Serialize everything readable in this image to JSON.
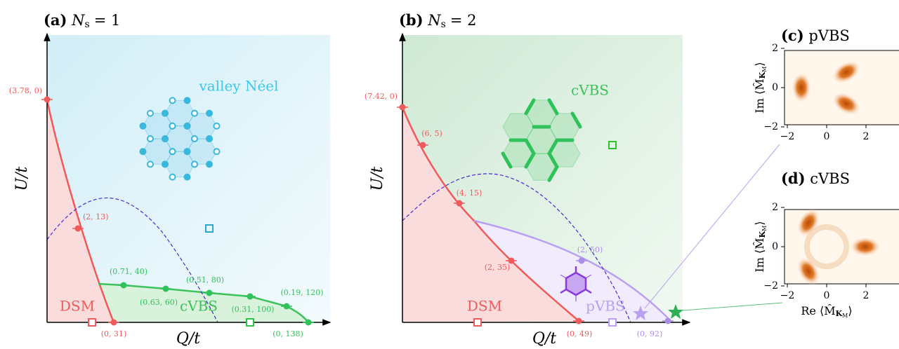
{
  "panel_a": {
    "tag": "(a)",
    "symbol": "N",
    "subscript": "s",
    "equals": "= 1",
    "y_label": "U/t",
    "x_label": "Q/t",
    "phases": [
      "valley Néel",
      "DSM",
      "cVBS"
    ],
    "point_labels": [
      "(3.78, 0)",
      "(2, 13)",
      "(0, 31)",
      "(0.71, 40)",
      "(0.63, 60)",
      "(0.51, 80)",
      "(0.31, 100)",
      "(0.19, 120)",
      "(0, 138)"
    ]
  },
  "panel_b": {
    "tag": "(b)",
    "symbol": "N",
    "subscript": "s",
    "equals": "= 2",
    "y_label": "U/t",
    "x_label": "Q/t",
    "phases": [
      "cVBS",
      "DSM",
      "pVBS"
    ],
    "point_labels": [
      "(7.42, 0)",
      "(6, 5)",
      "(4, 15)",
      "(2, 35)",
      "(0, 49)",
      "(2, 50)",
      "(0, 92)"
    ]
  },
  "panel_c": {
    "tag": "(c)",
    "title": "pVBS",
    "y_label": [
      "Im ⟨M̂",
      "K",
      "M",
      "⟩"
    ],
    "x_ticks": [
      "−2",
      "0",
      "2"
    ],
    "y_ticks": [
      "2",
      "0",
      "−2"
    ]
  },
  "panel_d": {
    "tag": "(d)",
    "title": "cVBS",
    "y_label": [
      "Im ⟨M̂",
      "K",
      "M",
      "⟩"
    ],
    "x_label": [
      "Re ⟨M̂",
      "K",
      "M",
      "⟩"
    ],
    "x_ticks": [
      "−2",
      "0",
      "2"
    ],
    "y_ticks": [
      "2",
      "0",
      "−2"
    ]
  }
}
